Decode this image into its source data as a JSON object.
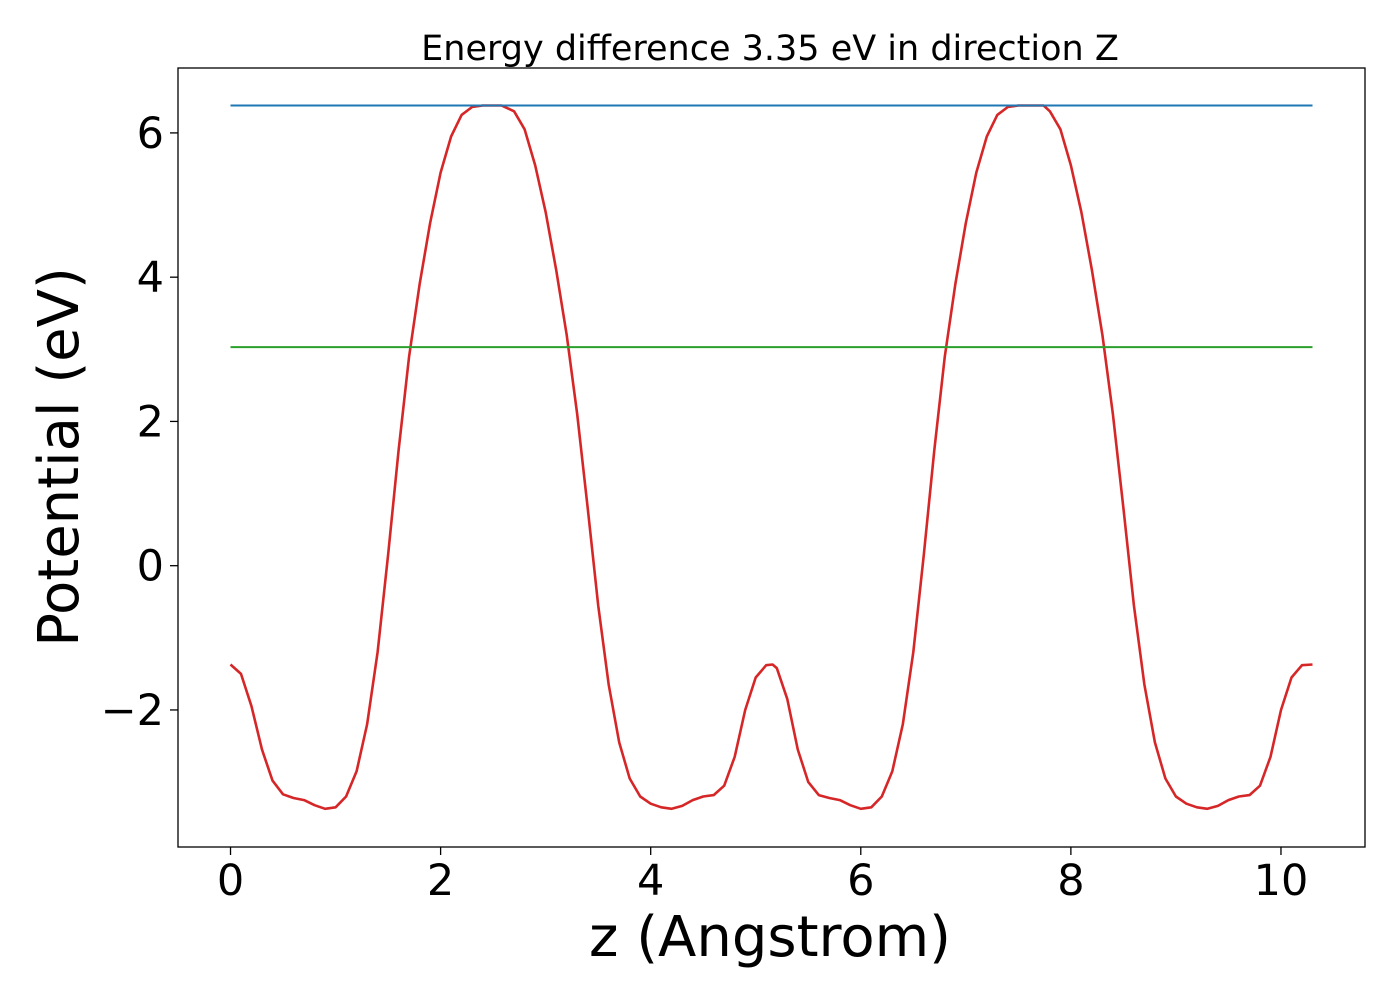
{
  "chart_data": {
    "type": "line",
    "title": "Energy difference 3.35 eV in direction Z",
    "xlabel": "z (Angstrom)",
    "ylabel": "Potential (eV)",
    "xlim": [
      -0.5,
      10.8
    ],
    "ylim": [
      -3.9,
      6.9
    ],
    "x_ticks": [
      0,
      2,
      4,
      6,
      8,
      10
    ],
    "x_tick_labels": [
      "0",
      "2",
      "4",
      "6",
      "8",
      "10"
    ],
    "y_ticks": [
      -2,
      0,
      2,
      4,
      6
    ],
    "y_tick_labels": [
      "−2",
      "0",
      "2",
      "4",
      "6"
    ],
    "grid": false,
    "legend": "none",
    "series": [
      {
        "color": "#d62728",
        "x": [
          0,
          0.1,
          0.2,
          0.3,
          0.4,
          0.5,
          0.6,
          0.7,
          0.8,
          0.9,
          1.0,
          1.1,
          1.2,
          1.3,
          1.4,
          1.5,
          1.6,
          1.7,
          1.8,
          1.9,
          2.0,
          2.1,
          2.2,
          2.3,
          2.4,
          2.5,
          2.58,
          2.7,
          2.8,
          2.9,
          3.0,
          3.1,
          3.2,
          3.3,
          3.4,
          3.5,
          3.6,
          3.7,
          3.8,
          3.9,
          4.0,
          4.1,
          4.2,
          4.3,
          4.4,
          4.5,
          4.6,
          4.7,
          4.8,
          4.9,
          5.0,
          5.1,
          5.16,
          5.2,
          5.3,
          5.4,
          5.5,
          5.6,
          5.7,
          5.8,
          5.9,
          6.0,
          6.1,
          6.2,
          6.3,
          6.4,
          6.5,
          6.6,
          6.7,
          6.8,
          6.9,
          7.0,
          7.1,
          7.2,
          7.3,
          7.4,
          7.5,
          7.6,
          7.74,
          7.8,
          7.9,
          8.0,
          8.1,
          8.2,
          8.3,
          8.4,
          8.5,
          8.6,
          8.7,
          8.8,
          8.9,
          9.0,
          9.1,
          9.2,
          9.3,
          9.4,
          9.5,
          9.6,
          9.7,
          9.8,
          9.9,
          10.0,
          10.1,
          10.2,
          10.3
        ],
        "y": [
          -1.37,
          -1.5,
          -1.95,
          -2.55,
          -2.98,
          -3.17,
          -3.22,
          -3.25,
          -3.32,
          -3.37,
          -3.35,
          -3.2,
          -2.85,
          -2.2,
          -1.2,
          0.15,
          1.6,
          2.9,
          3.9,
          4.75,
          5.45,
          5.95,
          6.25,
          6.36,
          6.38,
          6.38,
          6.38,
          6.3,
          6.05,
          5.55,
          4.9,
          4.1,
          3.2,
          2.1,
          0.8,
          -0.55,
          -1.65,
          -2.45,
          -2.95,
          -3.2,
          -3.3,
          -3.35,
          -3.37,
          -3.33,
          -3.25,
          -3.2,
          -3.18,
          -3.05,
          -2.65,
          -2.0,
          -1.55,
          -1.38,
          -1.37,
          -1.42,
          -1.85,
          -2.55,
          -3.0,
          -3.18,
          -3.22,
          -3.25,
          -3.32,
          -3.37,
          -3.35,
          -3.2,
          -2.85,
          -2.2,
          -1.2,
          0.15,
          1.6,
          2.9,
          3.9,
          4.75,
          5.45,
          5.95,
          6.25,
          6.36,
          6.38,
          6.38,
          6.38,
          6.3,
          6.05,
          5.55,
          4.9,
          4.1,
          3.2,
          2.1,
          0.8,
          -0.55,
          -1.65,
          -2.45,
          -2.95,
          -3.2,
          -3.3,
          -3.35,
          -3.37,
          -3.33,
          -3.25,
          -3.2,
          -3.18,
          -3.05,
          -2.65,
          -2.0,
          -1.55,
          -1.38,
          -1.37
        ]
      },
      {
        "color": "#1f77b4",
        "x": [
          0,
          10.3
        ],
        "y": [
          6.38,
          6.38
        ]
      },
      {
        "color": "#2ca02c",
        "x": [
          0,
          10.3
        ],
        "y": [
          3.03,
          3.03
        ]
      }
    ]
  }
}
